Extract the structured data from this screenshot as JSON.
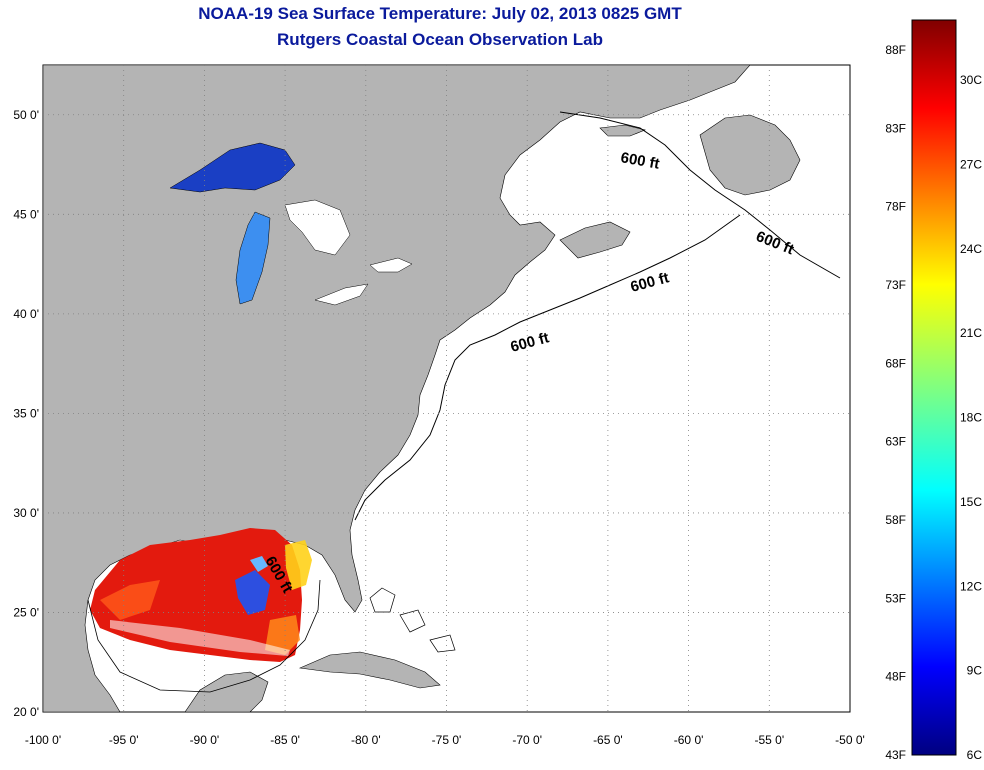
{
  "title_line1": "NOAA-19 Sea Surface Temperature:  July 02, 2013 0825 GMT",
  "title_line2": "Rutgers Coastal Ocean Observation Lab",
  "map": {
    "x_ticks": [
      "-100 0'",
      "-95 0'",
      "-90 0'",
      "-85 0'",
      "-80 0'",
      "-75 0'",
      "-70 0'",
      "-65 0'",
      "-60 0'",
      "-55 0'",
      "-50 0'"
    ],
    "y_ticks": [
      "20 0'",
      "25 0'",
      "30 0'",
      "35 0'",
      "40 0'",
      "45 0'",
      "50 0'"
    ],
    "lon_range": [
      -100,
      -50
    ],
    "lat_range": [
      20,
      52.5
    ],
    "contour_labels": [
      "600 ft",
      "600 ft",
      "600 ft",
      "600 ft",
      "600 ft"
    ],
    "land_color": "#b4b4b4",
    "ocean_color": "#ffffff",
    "grid": "dotted"
  },
  "colorbar": {
    "fahrenheit_labels": [
      "88F",
      "83F",
      "78F",
      "73F",
      "68F",
      "63F",
      "58F",
      "53F",
      "48F",
      "43F"
    ],
    "celsius_labels": [
      "30C",
      "27C",
      "24C",
      "21C",
      "18C",
      "15C",
      "12C",
      "9C",
      "6C"
    ],
    "colormap": "jet"
  }
}
